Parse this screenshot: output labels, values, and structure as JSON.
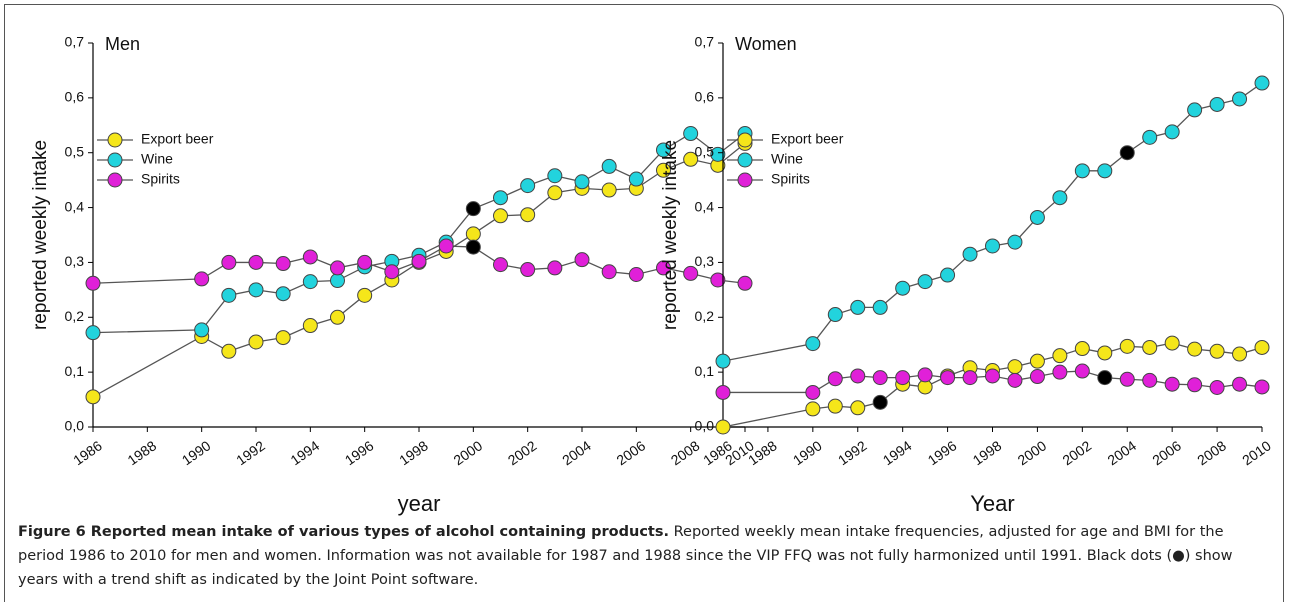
{
  "chart_data": [
    {
      "type": "line",
      "title": "Men",
      "xlabel": "year",
      "ylabel": "reported weekly intake",
      "x": [
        1986,
        1990,
        1991,
        1992,
        1993,
        1994,
        1995,
        1996,
        1997,
        1998,
        1999,
        2000,
        2001,
        2002,
        2003,
        2004,
        2005,
        2006,
        2007,
        2008,
        2009,
        2010
      ],
      "xlim": [
        1986,
        2010
      ],
      "xticks": [
        1986,
        1988,
        1990,
        1992,
        1994,
        1996,
        1998,
        2000,
        2002,
        2004,
        2006,
        2008,
        2010
      ],
      "ylim": [
        0,
        0.7
      ],
      "yticks": [
        {
          "value": 0,
          "label": "0,0"
        },
        {
          "value": 0.1,
          "label": "0,1"
        },
        {
          "value": 0.2,
          "label": "0,2"
        },
        {
          "value": 0.3,
          "label": "0,3"
        },
        {
          "value": 0.4,
          "label": "0,4"
        },
        {
          "value": 0.5,
          "label": "0,5"
        },
        {
          "value": 0.6,
          "label": "0,6"
        },
        {
          "value": 0.7,
          "label": "0,7"
        }
      ],
      "legend": "upper left",
      "series": [
        {
          "name": "Export beer",
          "color": "#f5e61a",
          "values": [
            0.055,
            0.165,
            0.138,
            0.155,
            0.163,
            0.185,
            0.2,
            0.24,
            0.268,
            0.3,
            0.32,
            0.352,
            0.385,
            0.387,
            0.427,
            0.435,
            0.432,
            0.435,
            0.468,
            0.488,
            0.477,
            0.517
          ]
        },
        {
          "name": "Wine",
          "color": "#22d3dd",
          "values": [
            0.172,
            0.177,
            0.24,
            0.25,
            0.243,
            0.265,
            0.267,
            0.292,
            0.302,
            0.313,
            0.337,
            0.398,
            0.418,
            0.44,
            0.458,
            0.447,
            0.475,
            0.452,
            0.505,
            0.535,
            0.497,
            0.535
          ],
          "point_colors": [
            "#22d3dd",
            "#22d3dd",
            "#22d3dd",
            "#22d3dd",
            "#22d3dd",
            "#22d3dd",
            "#22d3dd",
            "#22d3dd",
            "#22d3dd",
            "#22d3dd",
            "#22d3dd",
            "#000000",
            "#22d3dd",
            "#22d3dd",
            "#22d3dd",
            "#22d3dd",
            "#22d3dd",
            "#22d3dd",
            "#22d3dd",
            "#22d3dd",
            "#22d3dd",
            "#22d3dd"
          ]
        },
        {
          "name": "Spirits",
          "color": "#e020d8",
          "values": [
            0.262,
            0.27,
            0.3,
            0.3,
            0.298,
            0.31,
            0.29,
            0.3,
            0.283,
            0.302,
            0.33,
            0.328,
            0.296,
            0.287,
            0.29,
            0.305,
            0.283,
            0.278,
            0.29,
            0.28,
            0.268,
            0.262
          ],
          "point_colors": [
            "#e020d8",
            "#e020d8",
            "#e020d8",
            "#e020d8",
            "#e020d8",
            "#e020d8",
            "#e020d8",
            "#e020d8",
            "#e020d8",
            "#e020d8",
            "#e020d8",
            "#000000",
            "#e020d8",
            "#e020d8",
            "#e020d8",
            "#e020d8",
            "#e020d8",
            "#e020d8",
            "#e020d8",
            "#e020d8",
            "#e020d8",
            "#e020d8"
          ]
        }
      ]
    },
    {
      "type": "line",
      "title": "Women",
      "xlabel": "Year",
      "ylabel": "reported weekly intake",
      "x": [
        1986,
        1990,
        1991,
        1992,
        1993,
        1994,
        1995,
        1996,
        1997,
        1998,
        1999,
        2000,
        2001,
        2002,
        2003,
        2004,
        2005,
        2006,
        2007,
        2008,
        2009,
        2010
      ],
      "xlim": [
        1986,
        2010
      ],
      "xticks": [
        1986,
        1988,
        1990,
        1992,
        1994,
        1996,
        1998,
        2000,
        2002,
        2004,
        2006,
        2008,
        2010
      ],
      "ylim": [
        0,
        0.7
      ],
      "yticks": [
        {
          "value": 0,
          "label": "0,0"
        },
        {
          "value": 0.1,
          "label": "0,1"
        },
        {
          "value": 0.2,
          "label": "0,2"
        },
        {
          "value": 0.3,
          "label": "0,3"
        },
        {
          "value": 0.4,
          "label": "0,4"
        },
        {
          "value": 0.5,
          "label": "0,5"
        },
        {
          "value": 0.6,
          "label": "0,6"
        },
        {
          "value": 0.7,
          "label": "0,7"
        }
      ],
      "legend": "upper left",
      "series": [
        {
          "name": "Export beer",
          "color": "#f5e61a",
          "values": [
            0.0,
            0.033,
            0.038,
            0.035,
            0.045,
            0.078,
            0.073,
            0.093,
            0.108,
            0.103,
            0.11,
            0.12,
            0.13,
            0.143,
            0.135,
            0.147,
            0.145,
            0.153,
            0.142,
            0.138,
            0.133,
            0.145
          ],
          "point_colors": [
            "#f5e61a",
            "#f5e61a",
            "#f5e61a",
            "#f5e61a",
            "#000000",
            "#f5e61a",
            "#f5e61a",
            "#f5e61a",
            "#f5e61a",
            "#f5e61a",
            "#f5e61a",
            "#f5e61a",
            "#f5e61a",
            "#f5e61a",
            "#f5e61a",
            "#f5e61a",
            "#f5e61a",
            "#f5e61a",
            "#f5e61a",
            "#f5e61a",
            "#f5e61a",
            "#f5e61a"
          ]
        },
        {
          "name": "Wine",
          "color": "#22d3dd",
          "values": [
            0.12,
            0.152,
            0.205,
            0.218,
            0.218,
            0.253,
            0.265,
            0.277,
            0.315,
            0.33,
            0.337,
            0.382,
            0.418,
            0.467,
            0.467,
            0.5,
            0.528,
            0.538,
            0.578,
            0.588,
            0.598,
            0.627
          ],
          "point_colors": [
            "#22d3dd",
            "#22d3dd",
            "#22d3dd",
            "#22d3dd",
            "#22d3dd",
            "#22d3dd",
            "#22d3dd",
            "#22d3dd",
            "#22d3dd",
            "#22d3dd",
            "#22d3dd",
            "#22d3dd",
            "#22d3dd",
            "#22d3dd",
            "#22d3dd",
            "#000000",
            "#22d3dd",
            "#22d3dd",
            "#22d3dd",
            "#22d3dd",
            "#22d3dd",
            "#22d3dd"
          ]
        },
        {
          "name": "Spirits",
          "color": "#e020d8",
          "values": [
            0.063,
            0.063,
            0.088,
            0.093,
            0.09,
            0.09,
            0.095,
            0.09,
            0.09,
            0.093,
            0.085,
            0.092,
            0.1,
            0.102,
            0.09,
            0.087,
            0.085,
            0.078,
            0.077,
            0.072,
            0.078,
            0.073
          ],
          "point_colors": [
            "#e020d8",
            "#e020d8",
            "#e020d8",
            "#e020d8",
            "#e020d8",
            "#e020d8",
            "#e020d8",
            "#e020d8",
            "#e020d8",
            "#e020d8",
            "#e020d8",
            "#e020d8",
            "#e020d8",
            "#e020d8",
            "#000000",
            "#e020d8",
            "#e020d8",
            "#e020d8",
            "#e020d8",
            "#e020d8",
            "#e020d8",
            "#e020d8"
          ]
        }
      ]
    }
  ],
  "caption": {
    "title": "Figure 6 Reported mean intake of various types of alcohol containing products.",
    "text": "Reported weekly mean intake frequencies, adjusted for age and BMI for the period 1986 to 2010 for men and women. Information was not available for 1987 and 1988 since the VIP FFQ was not fully harmonized until 1991. Black dots (●) show years with a trend shift as indicated by the Joint Point software."
  }
}
